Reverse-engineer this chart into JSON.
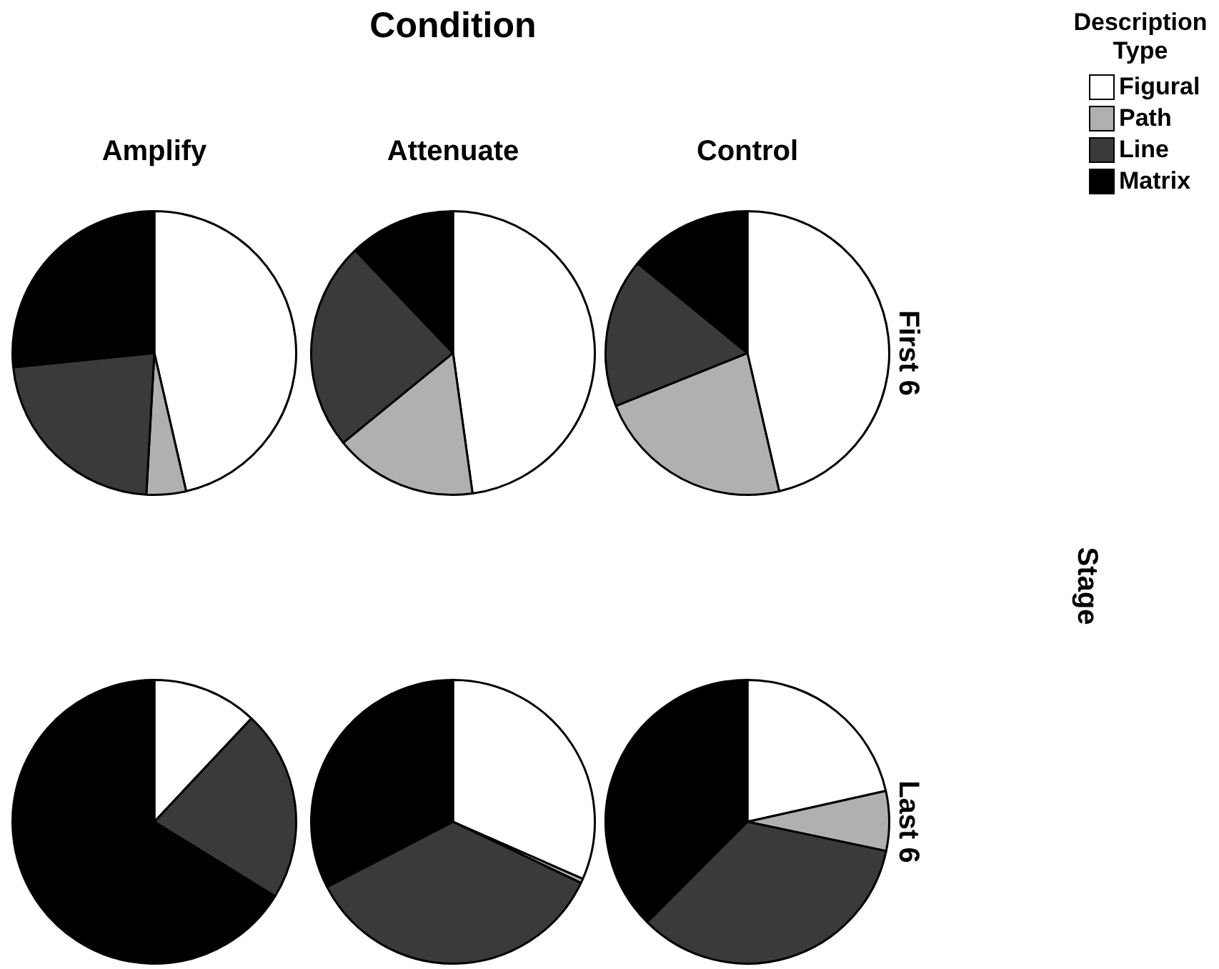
{
  "chart_data": [
    {
      "type": "pie",
      "title": "Amplify",
      "categories": [
        null,
        null,
        null,
        null
      ],
      "values": [
        46.4,
        4.5,
        22.5,
        26.6
      ],
      "colors": [
        "#ffffff",
        "#b0b0b0",
        "#3a3a3a",
        "#000000"
      ],
      "legend": false
    },
    {
      "type": "pie",
      "title": "Attenuate",
      "annotations": [
        "Condition"
      ],
      "categories": [
        null,
        null,
        null,
        null
      ],
      "values": [
        47.8,
        16.3,
        23.8,
        12.1
      ],
      "colors": [
        "#ffffff",
        "#b0b0b0",
        "#3a3a3a",
        "#000000"
      ],
      "legend": false
    },
    {
      "type": "pie",
      "title": "Control",
      "annotations": [
        "First 6"
      ],
      "categories": [
        "Figural",
        "Path",
        "Line",
        "Matrix"
      ],
      "values": [
        46.4,
        22.5,
        17.0,
        14.1
      ],
      "colors": [
        "#ffffff",
        "#b0b0b0",
        "#3a3a3a",
        "#000000"
      ],
      "legend": "top right",
      "legend_title": "Description Type"
    },
    {
      "type": "pie",
      "categories": [
        null,
        null,
        null,
        null
      ],
      "values": [
        12.0,
        0,
        21.8,
        66.2
      ],
      "colors": [
        "#ffffff",
        "#b0b0b0",
        "#3a3a3a",
        "#000000"
      ],
      "legend": false
    },
    {
      "type": "pie",
      "categories": [
        null,
        null,
        null,
        null
      ],
      "values": [
        31.6,
        0.5,
        35.3,
        32.6
      ],
      "colors": [
        "#ffffff",
        "#b0b0b0",
        "#3a3a3a",
        "#000000"
      ],
      "legend": false
    },
    {
      "type": "pie",
      "annotations": [
        "Last 6",
        "Stage"
      ],
      "categories": [
        null,
        null,
        null,
        null
      ],
      "values": [
        21.5,
        6.8,
        34.2,
        37.5
      ],
      "colors": [
        "#ffffff",
        "#b0b0b0",
        "#3a3a3a",
        "#000000"
      ],
      "legend": false
    }
  ]
}
